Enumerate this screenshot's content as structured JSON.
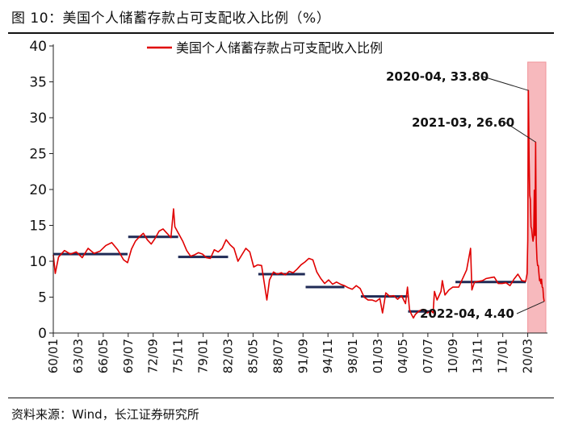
{
  "header": {
    "title": "图 10：美国个人储蓄存款占可支配收入比例（%）"
  },
  "footer": {
    "source": "资料来源：Wind，长江证券研究所"
  },
  "colors": {
    "series": "#e00000",
    "avg_line": "#1f2a55",
    "highlight": "#f7b9bd"
  },
  "chart_data": {
    "type": "line",
    "title": "",
    "xlabel": "",
    "ylabel": "",
    "ylim": [
      0,
      40
    ],
    "yticks": [
      0,
      5,
      10,
      15,
      20,
      25,
      30,
      35,
      40
    ],
    "grid": false,
    "legend": {
      "position": "top-center",
      "entries": [
        "美国个人储蓄存款占可支配收入比例"
      ]
    },
    "x_tick_labels": [
      "60/01",
      "63/03",
      "66/05",
      "69/07",
      "72/09",
      "75/11",
      "79/01",
      "82/03",
      "85/05",
      "88/07",
      "91/09",
      "94/11",
      "98/01",
      "01/03",
      "04/05",
      "07/07",
      "10/09",
      "13/11",
      "17/01",
      "20/03"
    ],
    "series": [
      {
        "name": "美国个人储蓄存款占可支配收入比例",
        "points": [
          [
            "1960-01",
            10.9
          ],
          [
            "1960-04",
            8.3
          ],
          [
            "1960-09",
            10.6
          ],
          [
            "1961-06",
            11.5
          ],
          [
            "1962-03",
            11.0
          ],
          [
            "1962-12",
            11.3
          ],
          [
            "1963-09",
            10.5
          ],
          [
            "1964-06",
            11.8
          ],
          [
            "1965-03",
            11.1
          ],
          [
            "1965-12",
            11.4
          ],
          [
            "1966-09",
            12.2
          ],
          [
            "1967-06",
            12.6
          ],
          [
            "1968-03",
            11.6
          ],
          [
            "1968-12",
            10.2
          ],
          [
            "1969-06",
            9.8
          ],
          [
            "1969-12",
            11.7
          ],
          [
            "1970-06",
            12.8
          ],
          [
            "1970-12",
            13.4
          ],
          [
            "1971-06",
            13.9
          ],
          [
            "1971-12",
            13.0
          ],
          [
            "1972-06",
            12.4
          ],
          [
            "1972-12",
            13.2
          ],
          [
            "1973-06",
            14.2
          ],
          [
            "1973-12",
            14.5
          ],
          [
            "1974-06",
            13.9
          ],
          [
            "1974-12",
            13.3
          ],
          [
            "1975-04",
            17.3
          ],
          [
            "1975-06",
            14.8
          ],
          [
            "1975-12",
            13.8
          ],
          [
            "1976-06",
            12.8
          ],
          [
            "1976-12",
            11.5
          ],
          [
            "1977-06",
            10.7
          ],
          [
            "1977-12",
            10.9
          ],
          [
            "1978-06",
            11.2
          ],
          [
            "1978-12",
            11.0
          ],
          [
            "1979-06",
            10.5
          ],
          [
            "1979-12",
            10.4
          ],
          [
            "1980-06",
            11.6
          ],
          [
            "1980-12",
            11.3
          ],
          [
            "1981-06",
            11.8
          ],
          [
            "1981-12",
            13.0
          ],
          [
            "1982-06",
            12.3
          ],
          [
            "1982-12",
            11.8
          ],
          [
            "1983-06",
            10.0
          ],
          [
            "1983-12",
            10.9
          ],
          [
            "1984-06",
            11.8
          ],
          [
            "1984-12",
            11.3
          ],
          [
            "1985-06",
            9.2
          ],
          [
            "1985-12",
            9.5
          ],
          [
            "1986-06",
            9.4
          ],
          [
            "1986-10",
            7.0
          ],
          [
            "1987-02",
            4.6
          ],
          [
            "1987-06",
            7.4
          ],
          [
            "1987-12",
            8.5
          ],
          [
            "1988-06",
            8.2
          ],
          [
            "1988-12",
            8.4
          ],
          [
            "1989-06",
            8.1
          ],
          [
            "1989-12",
            8.6
          ],
          [
            "1990-06",
            8.4
          ],
          [
            "1990-12",
            8.9
          ],
          [
            "1991-06",
            9.5
          ],
          [
            "1991-12",
            9.9
          ],
          [
            "1992-06",
            10.4
          ],
          [
            "1992-12",
            10.2
          ],
          [
            "1993-06",
            8.5
          ],
          [
            "1993-12",
            7.6
          ],
          [
            "1994-06",
            6.9
          ],
          [
            "1994-12",
            7.4
          ],
          [
            "1995-06",
            6.8
          ],
          [
            "1995-12",
            7.1
          ],
          [
            "1996-06",
            6.8
          ],
          [
            "1996-12",
            6.6
          ],
          [
            "1997-06",
            6.3
          ],
          [
            "1997-12",
            6.1
          ],
          [
            "1998-06",
            6.6
          ],
          [
            "1998-12",
            6.2
          ],
          [
            "1999-06",
            5.0
          ],
          [
            "1999-12",
            4.6
          ],
          [
            "2000-06",
            4.6
          ],
          [
            "2000-12",
            4.4
          ],
          [
            "2001-06",
            4.8
          ],
          [
            "2001-10",
            2.8
          ],
          [
            "2002-03",
            5.6
          ],
          [
            "2002-09",
            5.1
          ],
          [
            "2003-03",
            5.2
          ],
          [
            "2003-09",
            4.7
          ],
          [
            "2004-03",
            5.2
          ],
          [
            "2004-09",
            4.1
          ],
          [
            "2004-12",
            6.4
          ],
          [
            "2005-03",
            3.3
          ],
          [
            "2005-06",
            2.6
          ],
          [
            "2005-09",
            2.1
          ],
          [
            "2005-12",
            2.6
          ],
          [
            "2006-06",
            3.1
          ],
          [
            "2006-12",
            3.3
          ],
          [
            "2007-06",
            2.8
          ],
          [
            "2007-12",
            3.1
          ],
          [
            "2008-03",
            2.8
          ],
          [
            "2008-05",
            5.8
          ],
          [
            "2008-09",
            4.6
          ],
          [
            "2009-03",
            5.8
          ],
          [
            "2009-05",
            7.3
          ],
          [
            "2009-09",
            5.3
          ],
          [
            "2010-03",
            6.0
          ],
          [
            "2010-09",
            6.4
          ],
          [
            "2011-06",
            6.4
          ],
          [
            "2012-06",
            8.8
          ],
          [
            "2012-12",
            11.8
          ],
          [
            "2013-02",
            6.0
          ],
          [
            "2013-06",
            7.1
          ],
          [
            "2013-12",
            7.2
          ],
          [
            "2014-06",
            7.3
          ],
          [
            "2014-12",
            7.6
          ],
          [
            "2015-06",
            7.7
          ],
          [
            "2015-12",
            7.8
          ],
          [
            "2016-06",
            6.9
          ],
          [
            "2016-12",
            6.9
          ],
          [
            "2017-06",
            7.0
          ],
          [
            "2017-12",
            6.6
          ],
          [
            "2018-06",
            7.5
          ],
          [
            "2018-12",
            8.2
          ],
          [
            "2019-06",
            7.3
          ],
          [
            "2019-12",
            7.2
          ],
          [
            "2020-02",
            8.3
          ],
          [
            "2020-03",
            12.9
          ],
          [
            "2020-04",
            33.8
          ],
          [
            "2020-05",
            24.5
          ],
          [
            "2020-06",
            19.2
          ],
          [
            "2020-07",
            18.6
          ],
          [
            "2020-08",
            14.8
          ],
          [
            "2020-09",
            14.5
          ],
          [
            "2020-10",
            13.5
          ],
          [
            "2020-11",
            12.8
          ],
          [
            "2020-12",
            13.4
          ],
          [
            "2021-01",
            19.9
          ],
          [
            "2021-02",
            13.6
          ],
          [
            "2021-03",
            26.6
          ],
          [
            "2021-04",
            12.7
          ],
          [
            "2021-05",
            10.3
          ],
          [
            "2021-06",
            9.4
          ],
          [
            "2021-07",
            9.4
          ],
          [
            "2021-08",
            8.3
          ],
          [
            "2021-09",
            7.3
          ],
          [
            "2021-10",
            7.5
          ],
          [
            "2021-11",
            6.9
          ],
          [
            "2021-12",
            7.5
          ],
          [
            "2022-01",
            6.4
          ],
          [
            "2022-02",
            6.3
          ],
          [
            "2022-03",
            5.0
          ],
          [
            "2022-04",
            4.4
          ]
        ]
      }
    ],
    "average_segments": [
      {
        "start": "1960-01",
        "end": "1969-06",
        "value": 11.0
      },
      {
        "start": "1969-07",
        "end": "1975-11",
        "value": 13.4
      },
      {
        "start": "1975-11",
        "end": "1982-03",
        "value": 10.6
      },
      {
        "start": "1986-01",
        "end": "1991-12",
        "value": 8.2
      },
      {
        "start": "1992-01",
        "end": "1996-12",
        "value": 6.4
      },
      {
        "start": "1999-01",
        "end": "2004-12",
        "value": 5.1
      },
      {
        "start": "2005-01",
        "end": "2007-12",
        "value": 3.0
      },
      {
        "start": "2011-01",
        "end": "2019-12",
        "value": 7.1
      }
    ],
    "highlight_range": {
      "start": "2020-03",
      "end": "2022-04"
    },
    "annotations": [
      {
        "label": "2020-04, 33.80",
        "x": "2020-04",
        "y": 33.8
      },
      {
        "label": "2021-03, 26.60",
        "x": "2021-03",
        "y": 26.6
      },
      {
        "label": "2022-04, 4.40",
        "x": "2022-04",
        "y": 4.4
      }
    ]
  }
}
